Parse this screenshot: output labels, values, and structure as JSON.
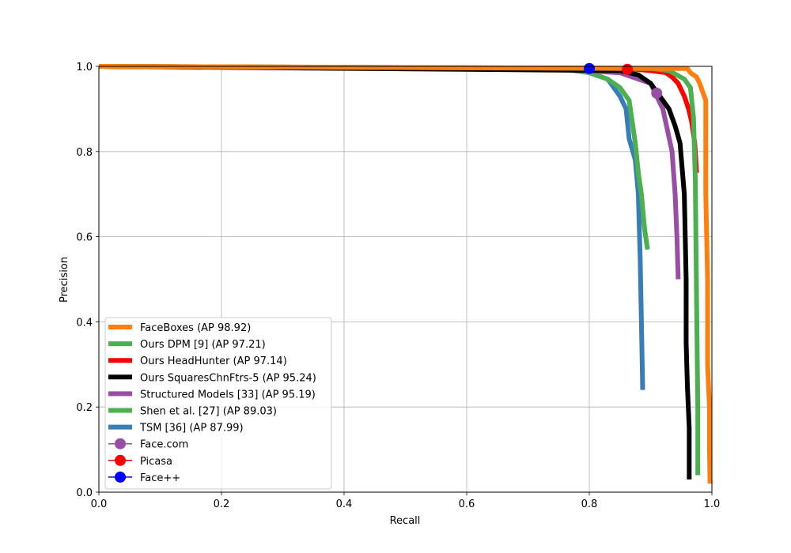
{
  "chart_data": {
    "type": "line",
    "xlabel": "Recall",
    "ylabel": "Precision",
    "xlim": [
      0,
      1
    ],
    "ylim": [
      0,
      1
    ],
    "xticks": [
      "0.0",
      "0.2",
      "0.4",
      "0.6",
      "0.8",
      "1.0"
    ],
    "yticks": [
      "0.0",
      "0.2",
      "0.4",
      "0.6",
      "0.8",
      "1.0"
    ],
    "grid": true,
    "legend_position": "lower-left",
    "series": [
      {
        "name": "FaceBoxes (AP 98.92)",
        "color": "#ff7f0e",
        "x": [
          0.0,
          0.96,
          0.965,
          0.975,
          0.98,
          0.985,
          0.99,
          0.99,
          0.993,
          0.993,
          0.996,
          0.996,
          0.997
        ],
        "y": [
          1.0,
          0.995,
          0.985,
          0.975,
          0.96,
          0.94,
          0.92,
          0.7,
          0.5,
          0.3,
          0.2,
          0.1,
          0.02
        ]
      },
      {
        "name": "Ours DPM [9] (AP 97.21)",
        "color": "#4caf50",
        "x": [
          0.0,
          0.9,
          0.93,
          0.955,
          0.965,
          0.97,
          0.973,
          0.975,
          0.977,
          0.977
        ],
        "y": [
          1.0,
          0.995,
          0.99,
          0.97,
          0.95,
          0.88,
          0.73,
          0.45,
          0.2,
          0.04
        ]
      },
      {
        "name": "Ours HeadHunter (AP 97.14)",
        "color": "#ff0000",
        "x": [
          0.0,
          0.86,
          0.9,
          0.925,
          0.935,
          0.945,
          0.955,
          0.962,
          0.967,
          0.972,
          0.975
        ],
        "y": [
          1.0,
          0.995,
          0.99,
          0.985,
          0.975,
          0.96,
          0.93,
          0.9,
          0.87,
          0.82,
          0.75
        ]
      },
      {
        "name": "Ours SquaresChnFtrs-5 (AP 95.24)",
        "color": "#000000",
        "x": [
          0.0,
          0.85,
          0.88,
          0.9,
          0.915,
          0.93,
          0.94,
          0.948,
          0.955,
          0.958,
          0.958,
          0.96,
          0.963,
          0.963
        ],
        "y": [
          1.0,
          0.99,
          0.98,
          0.96,
          0.93,
          0.9,
          0.86,
          0.82,
          0.7,
          0.5,
          0.35,
          0.25,
          0.15,
          0.03
        ]
      },
      {
        "name": "Structured Models [33] (AP 95.19)",
        "color": "#984ea3",
        "x": [
          0.0,
          0.55,
          0.75,
          0.85,
          0.9,
          0.92,
          0.935,
          0.94,
          0.943,
          0.945
        ],
        "y": [
          1.0,
          0.995,
          0.993,
          0.985,
          0.96,
          0.9,
          0.8,
          0.7,
          0.6,
          0.5
        ]
      },
      {
        "name": "Shen et al. [27] (AP 89.03)",
        "color": "#4caf50",
        "x": [
          0.0,
          0.75,
          0.8,
          0.83,
          0.85,
          0.865,
          0.875,
          0.88,
          0.885,
          0.89,
          0.895
        ],
        "y": [
          1.0,
          0.995,
          0.985,
          0.97,
          0.95,
          0.92,
          0.82,
          0.75,
          0.7,
          0.62,
          0.57
        ]
      },
      {
        "name": "TSM [36] (AP 87.99)",
        "color": "#377eb8",
        "x": [
          0.0,
          0.78,
          0.83,
          0.85,
          0.86,
          0.865,
          0.875,
          0.88,
          0.883,
          0.885,
          0.887,
          0.887
        ],
        "y": [
          1.0,
          0.995,
          0.97,
          0.93,
          0.9,
          0.83,
          0.78,
          0.7,
          0.55,
          0.4,
          0.25,
          0.24
        ]
      }
    ],
    "points": [
      {
        "name": "Face.com",
        "color": "#984ea3",
        "x": 0.91,
        "y": 0.937
      },
      {
        "name": "Picasa",
        "color": "#ff0000",
        "x": 0.862,
        "y": 0.993
      },
      {
        "name": "Face++",
        "color": "#0000ff",
        "x": 0.8,
        "y": 0.995
      }
    ]
  }
}
